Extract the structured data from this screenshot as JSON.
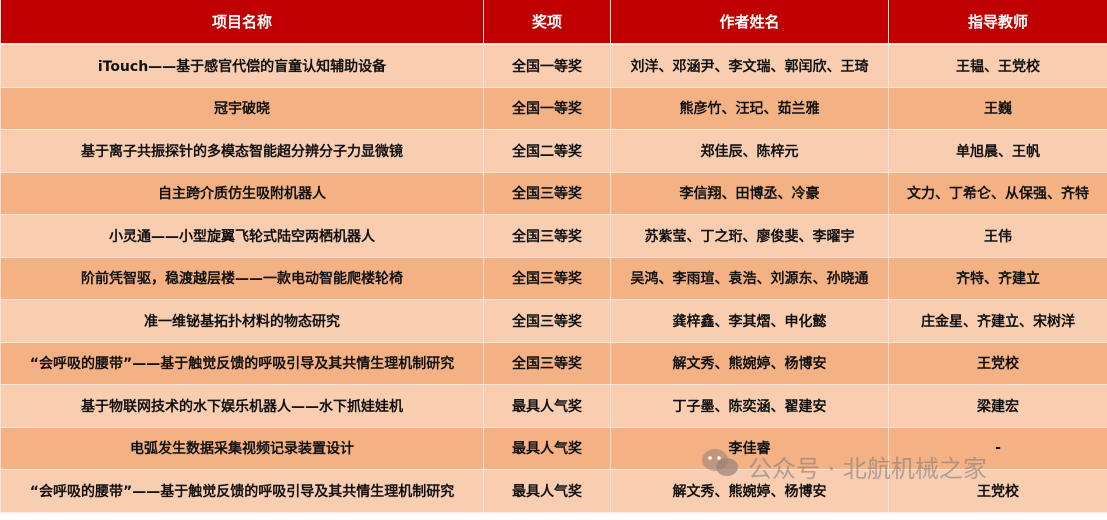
{
  "colors": {
    "header_bg": "#C00000",
    "row_light": "#F9CDB0",
    "row_dark": "#F4B183"
  },
  "headers": [
    "项目名称",
    "奖项",
    "作者姓名",
    "指导教师"
  ],
  "rows": [
    [
      "iTouch——基于感官代偿的盲童认知辅助设备",
      "全国一等奖",
      "刘洋、邓涵尹、李文瑞、郭闰欣、王琦",
      "王韫、王党校"
    ],
    [
      "冠宇破晓",
      "全国一等奖",
      "熊彦竹、汪玘、茹兰雅",
      "王巍"
    ],
    [
      "基于离子共振探针的多模态智能超分辨分子力显微镜",
      "全国二等奖",
      "郑佳辰、陈梓元",
      "单旭晨、王帆"
    ],
    [
      "自主跨介质仿生吸附机器人",
      "全国三等奖",
      "李信翔、田博丞、冷豪",
      "文力、丁希仑、从保强、齐特"
    ],
    [
      "小灵通——小型旋翼飞轮式陆空两栖机器人",
      "全国三等奖",
      "苏紫莹、丁之珩、廖俊斐、李曜宇",
      "王伟"
    ],
    [
      "阶前凭智驱，稳渡越层楼——一款电动智能爬楼轮椅",
      "全国三等奖",
      "吴鸿、李雨瑄、袁浩、刘源东、孙晓通",
      "齐特、齐建立"
    ],
    [
      "准一维铋基拓扑材料的物态研究",
      "全国三等奖",
      "龚梓鑫、李其熠、申化懿",
      "庄金星、齐建立、宋树洋"
    ],
    [
      "“会呼吸的腰带”——基于触觉反馈的呼吸引导及其共情生理机制研究",
      "全国三等奖",
      "解文秀、熊婉婷、杨博安",
      "王党校"
    ],
    [
      "基于物联网技术的水下娱乐机器人——水下抓娃娃机",
      "最具人气奖",
      "丁子墨、陈奕涵、翟建安",
      "梁建宏"
    ],
    [
      "电弧发生数据采集视频记录装置设计",
      "最具人气奖",
      "李佳睿",
      "-"
    ],
    [
      "“会呼吸的腰带”——基于触觉反馈的呼吸引导及其共情生理机制研究",
      "最具人气奖",
      "解文秀、熊婉婷、杨博安",
      "王党校"
    ]
  ],
  "watermark": {
    "icon": "wechat-icon",
    "text": "公众号 · 北航机械之家"
  }
}
